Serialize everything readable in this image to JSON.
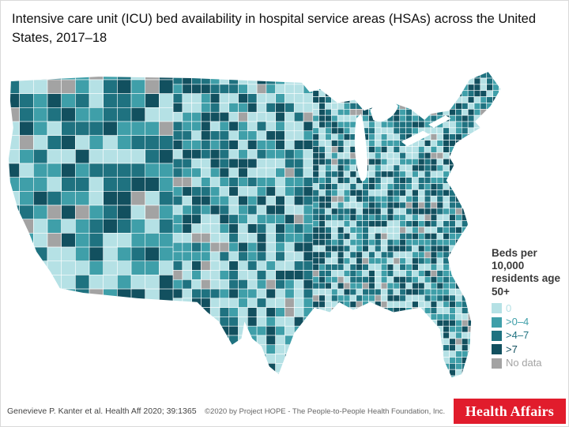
{
  "title": "Intensive care unit (ICU) bed availability in hospital service areas (HSAs) across the United States, 2017–18",
  "map": {
    "description": "Choropleth map of the continental United States showing ICU beds per 10,000 residents age 50+ by hospital service area (HSA)",
    "color_weights": [
      0.3,
      0.24,
      0.2,
      0.21,
      0.05
    ]
  },
  "legend": {
    "title": "Beds per 10,000 residents age 50+",
    "items": [
      {
        "label": "0",
        "color": "#b5e1e5"
      },
      {
        "label": ">0–4",
        "color": "#3f9fa9"
      },
      {
        "label": ">4–7",
        "color": "#1f7280"
      },
      {
        "label": ">7",
        "color": "#12505f"
      },
      {
        "label": "No data",
        "color": "#a3a3a3"
      }
    ]
  },
  "footer": {
    "citation": "Genevieve P. Kanter et al. Health Aff 2020; 39:1365",
    "copyright": "©2020 by Project HOPE - The People-to-People Health Foundation, Inc.",
    "logo_text": "Health Affairs",
    "logo_color": "#e11c2c"
  }
}
